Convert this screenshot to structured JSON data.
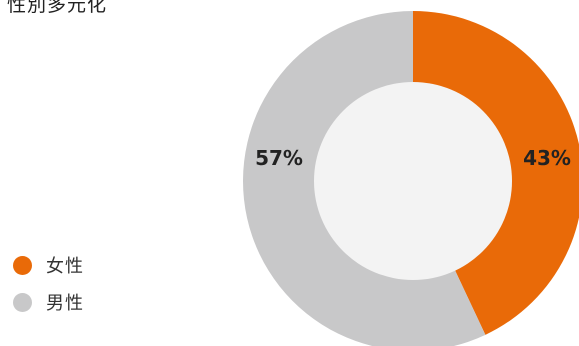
{
  "chart_data": {
    "type": "pie",
    "title": "性別多元化",
    "categories": [
      "女性",
      "男性"
    ],
    "values": [
      43,
      57
    ],
    "labels": [
      "43%",
      "57%"
    ],
    "colors": [
      "#e96a08",
      "#c8c8c9"
    ],
    "legend_position": "left"
  },
  "legend": {
    "items": [
      {
        "label": "女性",
        "color": "#e96a08"
      },
      {
        "label": "男性",
        "color": "#c8c8c9"
      }
    ]
  },
  "style": {
    "inner_fill": "#f3f3f3"
  }
}
